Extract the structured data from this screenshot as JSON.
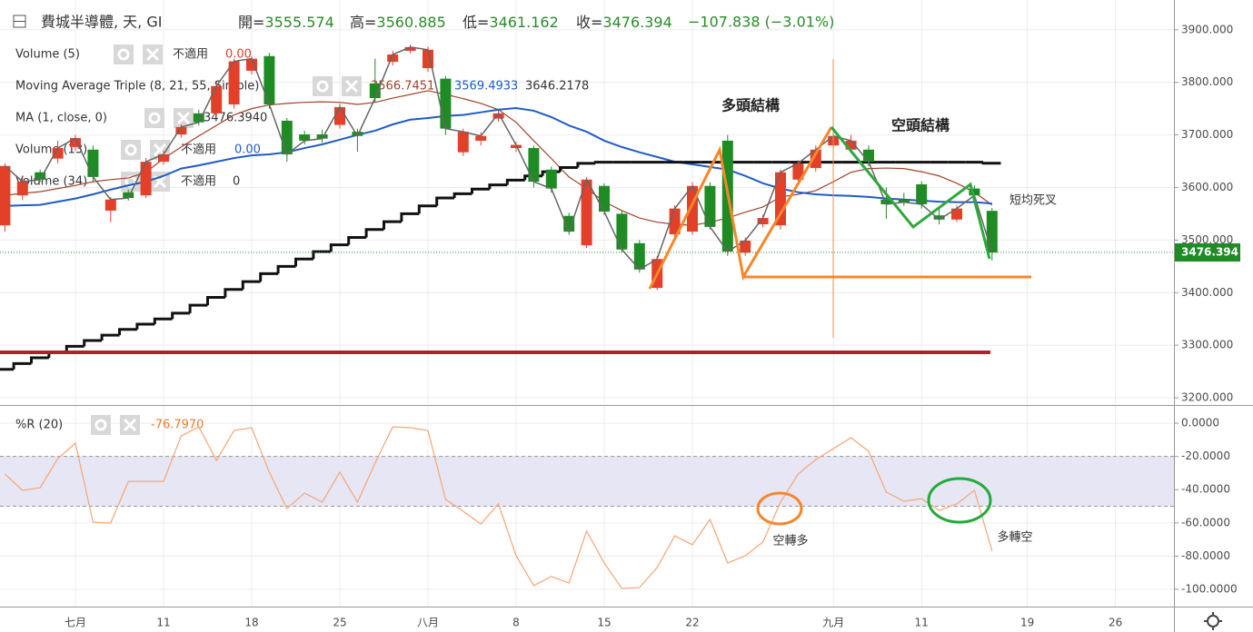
{
  "header": {
    "title": "費城半導體, 天, GI",
    "open_label": "開=",
    "open_value": "3555.574",
    "high_label": "高=",
    "high_value": "3560.885",
    "low_label": "低=",
    "low_value": "3461.162",
    "close_label": "收=",
    "close_value": "3476.394",
    "change": "−107.838 (−3.01%)"
  },
  "legends": [
    {
      "name": "Volume (5)",
      "status": "不適用",
      "value": "0.00"
    },
    {
      "name": "Moving Average Triple (8, 21, 55, Simple)"
    },
    {
      "name": "MA (1, close, 0)",
      "value": "3476.3940"
    },
    {
      "name": "Volume (13)",
      "status": "不適用",
      "value": "0.00"
    },
    {
      "name": "Volume (34)",
      "status": "不適用",
      "value": "0"
    },
    {
      "name": "%R (20)",
      "value": "-76.7970"
    }
  ],
  "annotations": [
    "多頭結構",
    "空頭結構",
    "短均死叉",
    "空轉多",
    "多轉空"
  ],
  "chart_data": [
    {
      "type": "candlestick",
      "up_color": "#e3402a",
      "down_color": "#1f8b24",
      "close_line_color": "#666666",
      "open": [
        3528,
        3585,
        3629,
        3655,
        3677,
        3672,
        3556,
        3591,
        3585,
        3649,
        3701,
        3741,
        3741,
        3758,
        3822,
        3850,
        3727,
        3701,
        3701,
        3719,
        3706,
        3798,
        3839,
        3860,
        3827,
        3807,
        3667,
        3689,
        3731,
        3675,
        3675,
        3634,
        3546,
        3490,
        3603,
        3550,
        3494,
        3409,
        3511,
        3516,
        3603,
        3689,
        3476,
        3530,
        3528,
        3615,
        3637,
        3680,
        3672,
        3672,
        3577,
        3577,
        3606,
        3547,
        3539,
        3598,
        3555.574,
        null,
        null,
        null,
        null,
        null,
        null,
        null,
        null,
        null
      ],
      "high": [
        3646,
        3620,
        3634,
        3689,
        3700,
        3680,
        3582,
        3596,
        3656,
        3670,
        3720,
        3748,
        3800,
        3845,
        3850,
        3856,
        3732,
        3708,
        3710,
        3760,
        3712,
        3845,
        3860,
        3872,
        3868,
        3812,
        3712,
        3705,
        3746,
        3686,
        3680,
        3640,
        3552,
        3620,
        3608,
        3556,
        3500,
        3470,
        3566,
        3610,
        3610,
        3700,
        3505,
        3548,
        3634,
        3652,
        3680,
        3712,
        3700,
        3680,
        3600,
        3590,
        3612,
        3560,
        3566,
        3604,
        3560.885,
        null,
        null,
        null,
        null,
        null,
        null,
        null,
        null,
        null
      ],
      "low": [
        3516,
        3576,
        3610,
        3646,
        3670,
        3612,
        3534,
        3575,
        3580,
        3643,
        3695,
        3718,
        3735,
        3750,
        3815,
        3750,
        3649,
        3682,
        3685,
        3712,
        3668,
        3762,
        3832,
        3855,
        3820,
        3700,
        3660,
        3680,
        3725,
        3668,
        3600,
        3590,
        3510,
        3485,
        3548,
        3476,
        3438,
        3405,
        3505,
        3510,
        3520,
        3470,
        3470,
        3524,
        3520,
        3608,
        3630,
        3675,
        3665,
        3640,
        3540,
        3565,
        3560,
        3530,
        3534,
        3580,
        3461.162,
        null,
        null,
        null,
        null,
        null,
        null,
        null,
        null,
        null
      ],
      "close": [
        3641,
        3611,
        3615,
        3675,
        3694,
        3620,
        3577,
        3580,
        3649,
        3663,
        3715,
        3724,
        3793,
        3840,
        3845,
        3758,
        3663,
        3689,
        3693,
        3753,
        3698,
        3770,
        3853,
        3867,
        3862,
        3712,
        3706,
        3698,
        3741,
        3681,
        3611,
        3598,
        3516,
        3615,
        3554,
        3482,
        3444,
        3464,
        3560,
        3603,
        3525,
        3478,
        3499,
        3542,
        3629,
        3646,
        3672,
        3698,
        3689,
        3649,
        3568,
        3572,
        3568,
        3539,
        3560,
        3585,
        3476.394,
        null,
        null,
        null,
        null,
        null,
        null,
        null,
        null,
        null
      ],
      "lines": [
        {
          "color": "#a0432a",
          "values": [
            3585,
            3589,
            3592,
            3598,
            3604,
            3611,
            3615,
            3618,
            3629,
            3655,
            3677,
            3698,
            3718,
            3738,
            3750,
            3757,
            3760,
            3762,
            3763,
            3762,
            3758,
            3762,
            3770,
            3777,
            3784,
            3777,
            3769,
            3760,
            3748,
            3724,
            3689,
            3655,
            3620,
            3598,
            3573,
            3556,
            3542,
            3534,
            3530,
            3528,
            3534,
            3542,
            3553,
            3563,
            3582,
            3587,
            3594,
            3611,
            3629,
            3636,
            3637,
            3636,
            3630,
            3622,
            3608,
            3591,
            3566.7451,
            null,
            null,
            null,
            null,
            null,
            null,
            null,
            null,
            null
          ]
        },
        {
          "color": "#1f5bc6",
          "values": [
            3565,
            3566,
            3567,
            3573,
            3579,
            3587,
            3596,
            3604,
            3611,
            3622,
            3636,
            3642,
            3649,
            3656,
            3661,
            3663,
            3667,
            3675,
            3682,
            3691,
            3700,
            3708,
            3720,
            3729,
            3732,
            3736,
            3738,
            3743,
            3748,
            3751,
            3746,
            3734,
            3718,
            3706,
            3689,
            3677,
            3667,
            3658,
            3649,
            3644,
            3639,
            3634,
            3622,
            3608,
            3598,
            3591,
            3587,
            3585,
            3584,
            3582,
            3579,
            3577,
            3575,
            3573,
            3572,
            3572,
            3569.4933,
            null,
            null,
            null,
            null,
            null,
            null,
            null,
            null,
            null
          ]
        },
        {
          "color": "#111111",
          "step": true,
          "values": [
            3254,
            3265,
            3276,
            3287,
            3298,
            3309,
            3319,
            3330,
            3340,
            3350,
            3361,
            3376,
            3391,
            3406,
            3421,
            3436,
            3450,
            3464,
            3478,
            3491,
            3505,
            3520,
            3535,
            3550,
            3565,
            3580,
            3588,
            3597,
            3605,
            3614,
            3622,
            3630,
            3638,
            3646,
            3648,
            3648,
            3648,
            3648,
            3648,
            3648,
            3648,
            3648,
            3648,
            3648,
            3648,
            3648,
            3648,
            3648,
            3648,
            3648,
            3648,
            3648,
            3648,
            3648,
            3648,
            3648,
            3646.2178,
            null,
            null,
            null,
            null,
            null,
            null,
            null,
            null,
            null
          ]
        }
      ],
      "ylim": [
        3188,
        3948
      ],
      "yticks": [
        {
          "value": 3200,
          "label": "3200.000"
        },
        {
          "value": 3300,
          "label": "3300.000"
        },
        {
          "value": 3400,
          "label": "3400.000"
        },
        {
          "value": 3500,
          "label": "3500.000"
        },
        {
          "value": 3600,
          "label": "3600.000"
        },
        {
          "value": 3700,
          "label": "3700.000"
        },
        {
          "value": 3800,
          "label": "3800.000"
        },
        {
          "value": 3900,
          "label": "3900.000"
        }
      ],
      "grid": true
    },
    {
      "type": "line",
      "color": "#f7a574",
      "categories": [
        null,
        null,
        null,
        null,
        "七月",
        null,
        null,
        null,
        null,
        "11",
        null,
        null,
        null,
        null,
        "18",
        null,
        null,
        null,
        null,
        "25",
        null,
        null,
        null,
        null,
        "八月",
        null,
        null,
        null,
        null,
        "8",
        null,
        null,
        null,
        null,
        "15",
        null,
        null,
        null,
        null,
        "22",
        null,
        null,
        null,
        null,
        null,
        null,
        null,
        "九月",
        null,
        null,
        null,
        null,
        "11",
        null,
        null,
        null,
        null,
        null,
        "19",
        null,
        null,
        null,
        null,
        "26",
        null,
        null
      ],
      "values": [
        -30.6,
        -40.4,
        -38.8,
        -21.3,
        -12.0,
        -59.6,
        -60.1,
        -35.0,
        -35.0,
        -35.0,
        -7.7,
        -2.2,
        -22.4,
        -4.4,
        -2.7,
        -29.5,
        -51.4,
        -42.1,
        -47.5,
        -29.5,
        -47.5,
        -24.0,
        -2.2,
        -2.7,
        -4.4,
        -45.9,
        -53.0,
        -60.7,
        -48.6,
        -79.8,
        -97.8,
        -92.3,
        -96.2,
        -65.0,
        -84.2,
        -99.5,
        -98.9,
        -86.9,
        -67.8,
        -73.2,
        -57.9,
        -84.2,
        -79.8,
        -71.6,
        -47.5,
        -30.6,
        -21.9,
        -15.3,
        -8.7,
        -16.9,
        -41.5,
        -47.0,
        -45.4,
        -52.5,
        -48.6,
        -40.4,
        -76.797,
        null,
        null,
        null,
        null,
        null,
        null,
        null,
        null,
        null
      ],
      "bands": [
        -20,
        -50
      ],
      "band_color": "#e6e6f4",
      "ylim": [
        -110.4,
        7.7
      ],
      "yticks": [
        {
          "value": 0,
          "label": "0.0000"
        },
        {
          "value": -20,
          "label": "-20.0000"
        },
        {
          "value": -40,
          "label": "-40.0000"
        },
        {
          "value": -60,
          "label": "-60.0000"
        },
        {
          "value": -80,
          "label": "-80.0000"
        },
        {
          "value": -100,
          "label": "-100.0000"
        }
      ],
      "grid": true
    }
  ]
}
